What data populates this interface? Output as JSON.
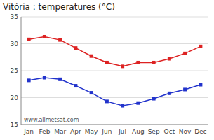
{
  "chart_data": {
    "type": "line",
    "title": "Vitória : temperatures (°C)",
    "categories": [
      "Jan",
      "Feb",
      "Mar",
      "Apr",
      "May",
      "Jun",
      "Jul",
      "Aug",
      "Sep",
      "Oct",
      "Nov",
      "Dec"
    ],
    "series": [
      {
        "color": "#dd2222",
        "marker": "square",
        "values": [
          30.8,
          31.3,
          30.7,
          29.2,
          27.7,
          26.5,
          25.8,
          26.5,
          26.5,
          27.2,
          28.2,
          29.5
        ]
      },
      {
        "color": "#2233cc",
        "marker": "square",
        "values": [
          23.2,
          23.7,
          23.4,
          22.2,
          20.9,
          19.3,
          18.5,
          19.0,
          19.8,
          20.8,
          21.5,
          22.4
        ]
      }
    ],
    "ylim": [
      15,
      35
    ],
    "yticks": [
      15,
      20,
      25,
      30,
      35
    ],
    "grid": true,
    "annotations": [
      "www.allmetsat.com"
    ]
  }
}
